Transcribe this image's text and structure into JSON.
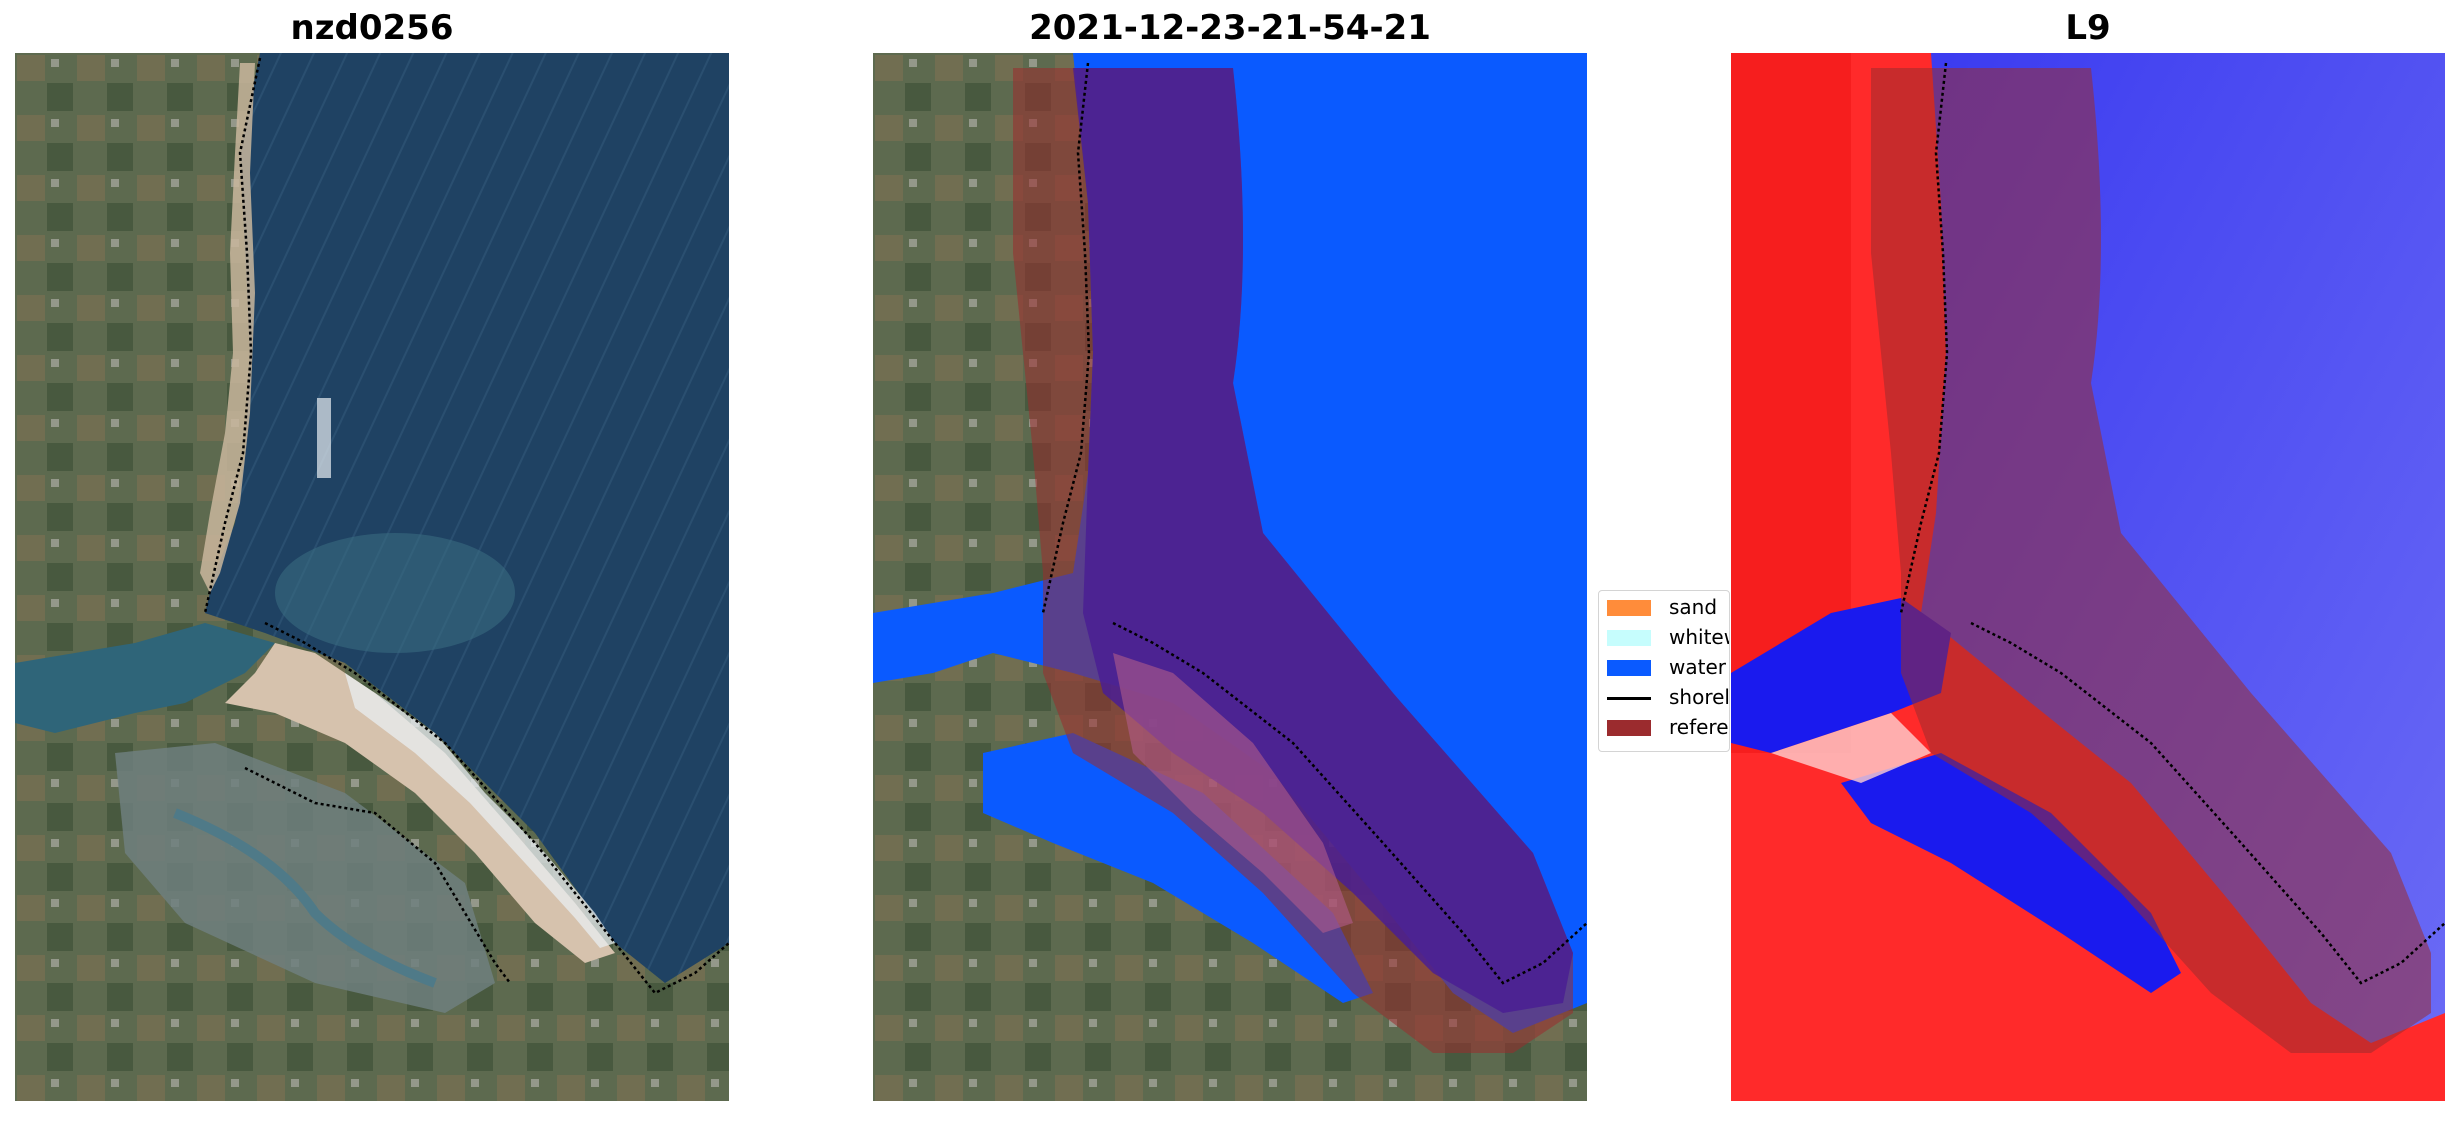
{
  "panels": [
    {
      "title": "nzd0256"
    },
    {
      "title": "2021-12-23-21-54-21"
    },
    {
      "title": "L9"
    }
  ],
  "legend": {
    "items": [
      {
        "label": "sand",
        "kind": "patch",
        "color": "#ff8c3a"
      },
      {
        "label": "whitewater",
        "kind": "patch",
        "color": "#c6fdfd"
      },
      {
        "label": "water",
        "kind": "patch",
        "color": "#0a5aff"
      },
      {
        "label": "shoreline",
        "kind": "line",
        "color": "#000000"
      },
      {
        "label": "reference",
        "kind": "patch",
        "color": "#9b2b2e"
      }
    ]
  },
  "colors": {
    "sea": "#2a4f6e",
    "land": "#4d5b45",
    "water_mask": "#0a5aff",
    "buffer_overlay": "#9b2b2e",
    "index_positive": "#ff2222",
    "index_negative": "#3333ee"
  }
}
